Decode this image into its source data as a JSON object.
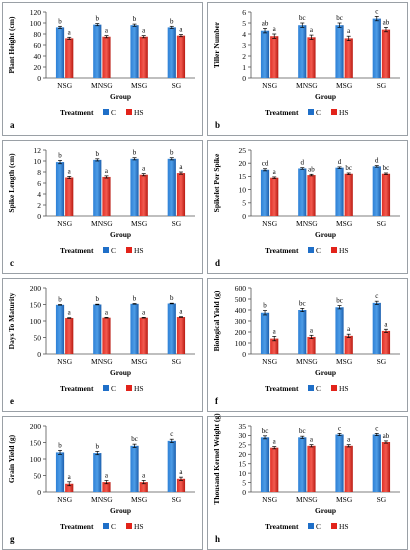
{
  "legend": {
    "treatment_label": "Treatment",
    "c_label": "C",
    "hs_label": "HS"
  },
  "colors": {
    "c": "#1f6fc8",
    "hs": "#e2231a"
  },
  "chart_data": [
    {
      "panel": "a",
      "type": "bar",
      "ylabel": "Plant Height (cm)",
      "xlabel": "Group",
      "ylim": [
        0,
        120
      ],
      "yticks": [
        0,
        20,
        40,
        60,
        80,
        100,
        120
      ],
      "categories": [
        "NSG",
        "MNSG",
        "MSG",
        "SG"
      ],
      "series": [
        {
          "name": "C",
          "values": [
            92,
            97,
            96,
            92
          ],
          "errors": [
            2,
            2,
            2,
            2
          ],
          "letters": [
            "b",
            "b",
            "b",
            "b"
          ]
        },
        {
          "name": "HS",
          "values": [
            72,
            75,
            75,
            77
          ],
          "errors": [
            2,
            2,
            2,
            2
          ],
          "letters": [
            "a",
            "a",
            "a",
            "a"
          ]
        }
      ],
      "legend": "bottom",
      "grid": false
    },
    {
      "panel": "b",
      "type": "bar",
      "ylabel": "Tiller Number",
      "xlabel": "Group",
      "ylim": [
        0,
        6
      ],
      "yticks": [
        0,
        1,
        2,
        3,
        4,
        5,
        6
      ],
      "categories": [
        "NSG",
        "MNSG",
        "MSG",
        "SG"
      ],
      "series": [
        {
          "name": "C",
          "values": [
            4.3,
            4.8,
            4.8,
            5.4
          ],
          "errors": [
            0.2,
            0.2,
            0.2,
            0.2
          ],
          "letters": [
            "ab",
            "bc",
            "bc",
            "c"
          ]
        },
        {
          "name": "HS",
          "values": [
            3.8,
            3.7,
            3.6,
            4.4
          ],
          "errors": [
            0.2,
            0.2,
            0.2,
            0.2
          ],
          "letters": [
            "a",
            "a",
            "a",
            "ab"
          ]
        }
      ],
      "legend": "bottom",
      "grid": false
    },
    {
      "panel": "c",
      "type": "bar",
      "ylabel": "Spike Length (cm)",
      "xlabel": "Group",
      "ylim": [
        0,
        12
      ],
      "yticks": [
        0,
        2,
        4,
        6,
        8,
        10,
        12
      ],
      "categories": [
        "NSG",
        "MNSG",
        "MSG",
        "SG"
      ],
      "series": [
        {
          "name": "C",
          "values": [
            9.8,
            10.2,
            10.4,
            10.4
          ],
          "errors": [
            0.3,
            0.2,
            0.2,
            0.2
          ],
          "letters": [
            "b",
            "b",
            "b",
            "b"
          ]
        },
        {
          "name": "HS",
          "values": [
            7.0,
            7.1,
            7.5,
            7.8
          ],
          "errors": [
            0.2,
            0.2,
            0.2,
            0.2
          ],
          "letters": [
            "a",
            "a",
            "a",
            "a"
          ]
        }
      ],
      "legend": "bottom",
      "grid": false
    },
    {
      "panel": "d",
      "type": "bar",
      "ylabel": "Spikelet Per Spike",
      "xlabel": "Group",
      "ylim": [
        0,
        25
      ],
      "yticks": [
        0,
        5,
        10,
        15,
        20,
        25
      ],
      "categories": [
        "NSG",
        "MNSG",
        "MSG",
        "SG"
      ],
      "series": [
        {
          "name": "C",
          "values": [
            17.5,
            18,
            18.3,
            18.8
          ],
          "errors": [
            0.4,
            0.3,
            0.3,
            0.3
          ],
          "letters": [
            "cd",
            "d",
            "d",
            "d"
          ]
        },
        {
          "name": "HS",
          "values": [
            14.5,
            15.5,
            16,
            16
          ],
          "errors": [
            0.3,
            0.3,
            0.3,
            0.3
          ],
          "letters": [
            "a",
            "ab",
            "bc",
            "bc"
          ]
        }
      ],
      "legend": "bottom",
      "grid": false
    },
    {
      "panel": "e",
      "type": "bar",
      "ylabel": "Days To Maturity",
      "xlabel": "Group",
      "ylim": [
        0,
        200
      ],
      "yticks": [
        0,
        50,
        100,
        150,
        200
      ],
      "categories": [
        "NSG",
        "MNSG",
        "MSG",
        "SG"
      ],
      "series": [
        {
          "name": "C",
          "values": [
            149,
            150,
            152,
            153
          ],
          "errors": [
            1,
            1,
            1,
            1
          ],
          "letters": [
            "b",
            "b",
            "b",
            "b"
          ]
        },
        {
          "name": "HS",
          "values": [
            109,
            110,
            110,
            112
          ],
          "errors": [
            1,
            1,
            1,
            1
          ],
          "letters": [
            "a",
            "a",
            "a",
            "a"
          ]
        }
      ],
      "legend": "bottom",
      "grid": false
    },
    {
      "panel": "f",
      "type": "bar",
      "ylabel": "Biological Yield (g)",
      "xlabel": "Group",
      "ylim": [
        0,
        600
      ],
      "yticks": [
        0,
        100,
        200,
        300,
        400,
        500,
        600
      ],
      "categories": [
        "NSG",
        "MNSG",
        "MSG",
        "SG"
      ],
      "series": [
        {
          "name": "C",
          "values": [
            375,
            400,
            425,
            465
          ],
          "errors": [
            20,
            15,
            15,
            15
          ],
          "letters": [
            "b",
            "bc",
            "bc",
            "c"
          ]
        },
        {
          "name": "HS",
          "values": [
            140,
            155,
            165,
            210
          ],
          "errors": [
            20,
            15,
            15,
            15
          ],
          "letters": [
            "a",
            "a",
            "a",
            "a"
          ]
        }
      ],
      "legend": "bottom",
      "grid": false
    },
    {
      "panel": "g",
      "type": "bar",
      "ylabel": "Grain Yield (g)",
      "xlabel": "Group",
      "ylim": [
        0,
        200
      ],
      "yticks": [
        0,
        50,
        100,
        150,
        200
      ],
      "categories": [
        "NSG",
        "MNSG",
        "MSG",
        "SG"
      ],
      "series": [
        {
          "name": "C",
          "values": [
            120,
            118,
            140,
            155
          ],
          "errors": [
            6,
            5,
            5,
            5
          ],
          "letters": [
            "b",
            "b",
            "bc",
            "c"
          ]
        },
        {
          "name": "HS",
          "values": [
            25,
            30,
            30,
            40
          ],
          "errors": [
            6,
            5,
            5,
            5
          ],
          "letters": [
            "a",
            "a",
            "a",
            "a"
          ]
        }
      ],
      "legend": "bottom",
      "grid": false
    },
    {
      "panel": "h",
      "type": "bar",
      "ylabel": "Thousand Kernel Weight (g)",
      "xlabel": "Group",
      "ylim": [
        0,
        35
      ],
      "yticks": [
        0,
        5,
        10,
        15,
        20,
        25,
        30,
        35
      ],
      "categories": [
        "NSG",
        "MNSG",
        "MSG",
        "SG"
      ],
      "series": [
        {
          "name": "C",
          "values": [
            29,
            29,
            30.5,
            30.5
          ],
          "errors": [
            0.8,
            0.6,
            0.6,
            0.6
          ],
          "letters": [
            "bc",
            "bc",
            "c",
            "c"
          ]
        },
        {
          "name": "HS",
          "values": [
            23.5,
            24.5,
            24.5,
            26.5
          ],
          "errors": [
            0.6,
            0.6,
            0.6,
            0.6
          ],
          "letters": [
            "a",
            "a",
            "a",
            "ab"
          ]
        }
      ],
      "legend": "bottom",
      "grid": false
    }
  ]
}
